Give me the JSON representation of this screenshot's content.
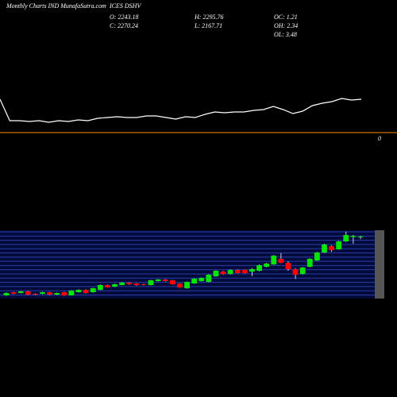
{
  "chart_data": {
    "type": "candlestick",
    "title": "Monthly Charts IND MunafaSutra.com",
    "symbol": "ICES DSHV",
    "stats": [
      "O: 2243.18",
      "C: 2270.24",
      "H: 2295.76",
      "L: 2167.71",
      "OC: 1.21",
      "OH: 2.34",
      "OL: 3.48"
    ],
    "level_label": "0",
    "ylim": [
      0,
      2500
    ],
    "up_color": "#00e600",
    "down_color": "#ff0000",
    "wick_color": "#ffffff",
    "open": [
      88,
      206,
      176,
      235,
      147,
      147,
      206,
      118,
      206,
      88,
      206,
      294,
      206,
      294,
      471,
      412,
      471,
      559,
      529,
      500,
      471,
      618,
      676,
      647,
      529,
      353,
      529,
      618,
      588,
      794,
      971,
      882,
      1029,
      1029,
      971,
      1000,
      1147,
      1235,
      1441,
      1294,
      1059,
      882,
      1147,
      1382,
      1676,
      1912,
      1794,
      2088,
      2250,
      2243.18
    ],
    "high": [
      200,
      220,
      250,
      250,
      160,
      220,
      220,
      190,
      220,
      280,
      310,
      310,
      370,
      490,
      490,
      520,
      580,
      570,
      540,
      520,
      660,
      690,
      690,
      660,
      540,
      600,
      720,
      750,
      870,
      1020,
      990,
      1050,
      1050,
      1040,
      1100,
      1230,
      1290,
      1580,
      1650,
      1350,
      1100,
      1140,
      1460,
      1700,
      2000,
      1940,
      2110,
      2450,
      2330,
      2295.76
    ],
    "low": [
      70,
      130,
      160,
      100,
      100,
      130,
      100,
      100,
      70,
      80,
      190,
      160,
      190,
      280,
      370,
      400,
      460,
      480,
      450,
      460,
      460,
      600,
      600,
      490,
      370,
      340,
      520,
      600,
      570,
      780,
      860,
      860,
      900,
      900,
      800,
      980,
      1130,
      1220,
      1280,
      1000,
      700,
      860,
      1130,
      1370,
      1660,
      1700,
      1780,
      2070,
      2000,
      2167.71
    ],
    "close": [
      176,
      147,
      235,
      118,
      118,
      206,
      118,
      176,
      88,
      265,
      294,
      176,
      353,
      471,
      382,
      500,
      559,
      500,
      471,
      480,
      647,
      676,
      618,
      500,
      382,
      588,
      706,
      735,
      853,
      1000,
      882,
      1029,
      912,
      912,
      1059,
      1206,
      1265,
      1559,
      1294,
      1059,
      853,
      1118,
      1441,
      1676,
      1971,
      1765,
      2088,
      2324,
      2290,
      2270.24
    ],
    "indicator": {
      "type": "line",
      "color": "#ffffff",
      "ylim": [
        0,
        40
      ],
      "values": [
        35,
        8,
        8,
        7,
        8,
        6,
        8,
        7,
        9,
        8,
        11,
        12,
        13,
        12,
        12,
        14,
        14,
        12,
        10,
        13,
        12,
        16,
        19,
        18,
        19,
        19,
        21,
        22,
        26,
        22,
        17,
        20,
        27,
        30,
        32,
        36,
        34,
        35
      ]
    },
    "level_line_color": "#ff8c00"
  }
}
